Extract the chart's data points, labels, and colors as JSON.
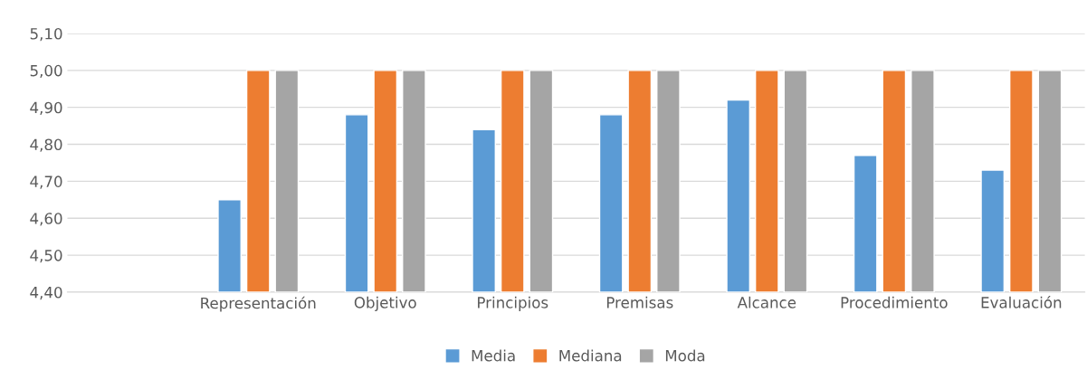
{
  "chart_data": {
    "type": "bar",
    "categories": [
      null,
      "Representación",
      "Objetivo",
      "Principios",
      "Premisas",
      "Alcance",
      "Procedimiento",
      "Evaluación"
    ],
    "series": [
      {
        "name": "Media",
        "color": "#5b9bd5",
        "values": [
          null,
          4.65,
          4.88,
          4.84,
          4.88,
          4.92,
          4.77,
          4.73
        ]
      },
      {
        "name": "Mediana",
        "color": "#ed7d31",
        "values": [
          null,
          5.0,
          5.0,
          5.0,
          5.0,
          5.0,
          5.0,
          5.0
        ]
      },
      {
        "name": "Moda",
        "color": "#a5a5a5",
        "values": [
          null,
          5.0,
          5.0,
          5.0,
          5.0,
          5.0,
          5.0,
          5.0
        ]
      }
    ],
    "ylim": [
      4.4,
      5.1
    ],
    "yticks": [
      {
        "value": 4.4,
        "label": "4,40"
      },
      {
        "value": 4.5,
        "label": "4,50"
      },
      {
        "value": 4.6,
        "label": "4,60"
      },
      {
        "value": 4.7,
        "label": "4,70"
      },
      {
        "value": 4.8,
        "label": "4,80"
      },
      {
        "value": 4.9,
        "label": "4,90"
      },
      {
        "value": 5.0,
        "label": "5,00"
      },
      {
        "value": 5.1,
        "label": "5,10"
      }
    ],
    "grid": "y",
    "legend": "bottom"
  }
}
